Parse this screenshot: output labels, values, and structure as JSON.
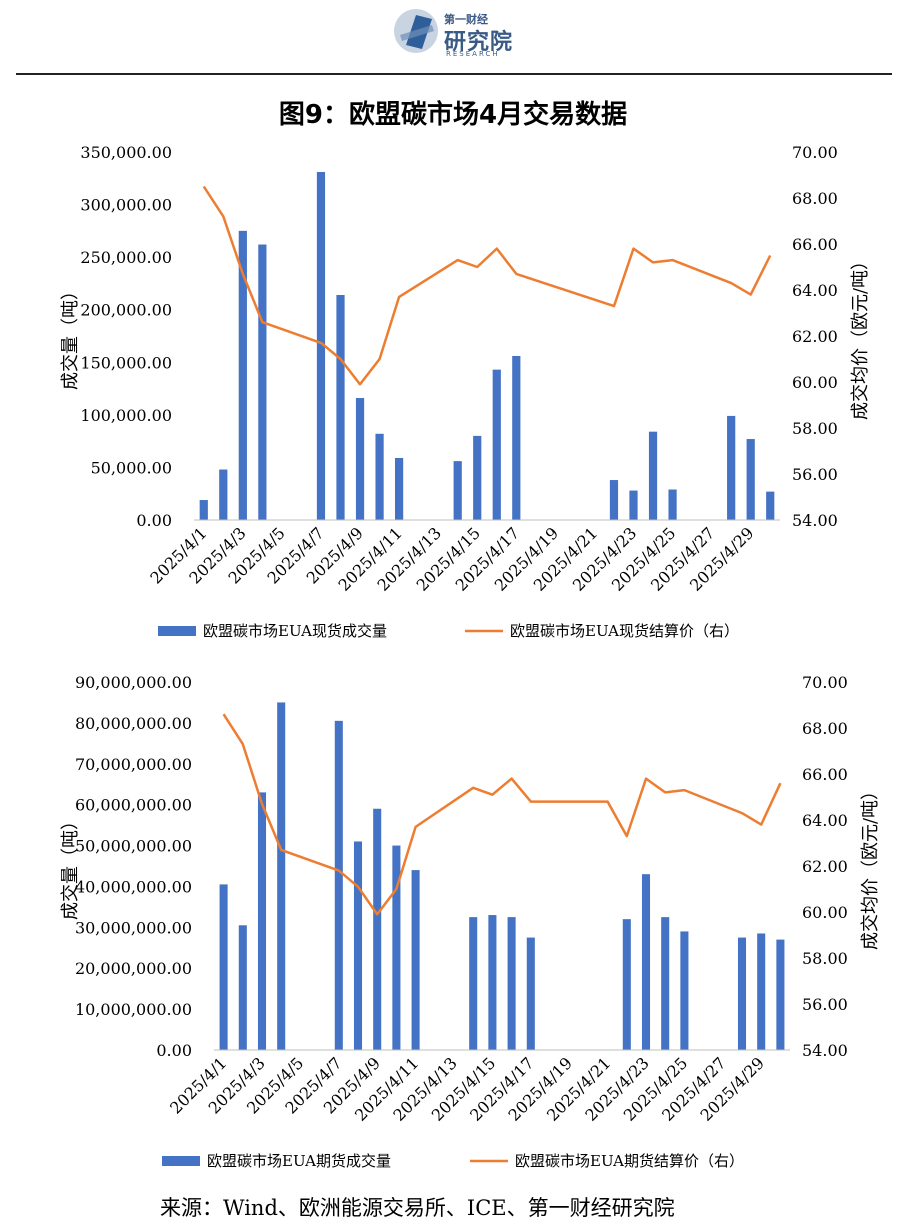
{
  "header": {
    "logo_cn": "第一财经",
    "logo_main": "研究院",
    "logo_en": "RESEARCH"
  },
  "title": "图9：欧盟碳市场4月交易数据",
  "source": "来源：Wind、欧洲能源交易所、ICE、第一财经研究院",
  "colors": {
    "bar": "#4472C4",
    "line": "#ED7D31"
  },
  "chart_data": [
    {
      "type": "bar+line",
      "categories": [
        "2025/4/1",
        "2025/4/2",
        "2025/4/3",
        "2025/4/4",
        "2025/4/5",
        "2025/4/6",
        "2025/4/7",
        "2025/4/8",
        "2025/4/9",
        "2025/4/10",
        "2025/4/11",
        "2025/4/12",
        "2025/4/13",
        "2025/4/14",
        "2025/4/15",
        "2025/4/16",
        "2025/4/17",
        "2025/4/18",
        "2025/4/19",
        "2025/4/20",
        "2025/4/21",
        "2025/4/22",
        "2025/4/23",
        "2025/4/24",
        "2025/4/25",
        "2025/4/26",
        "2025/4/27",
        "2025/4/28",
        "2025/4/29",
        "2025/4/30"
      ],
      "tick_labels": [
        "2025/4/1",
        "2025/4/3",
        "2025/4/5",
        "2025/4/7",
        "2025/4/9",
        "2025/4/11",
        "2025/4/13",
        "2025/4/15",
        "2025/4/17",
        "2025/4/19",
        "2025/4/21",
        "2025/4/23",
        "2025/4/25",
        "2025/4/27",
        "2025/4/29"
      ],
      "ylabel_left": "成交量（吨）",
      "ylabel_right": "成交均价（欧元/吨）",
      "ylim_left": [
        0,
        350000
      ],
      "ylim_right": [
        54,
        70
      ],
      "yticks_left": [
        "0.00",
        "50,000.00",
        "100,000.00",
        "150,000.00",
        "200,000.00",
        "250,000.00",
        "300,000.00",
        "350,000.00"
      ],
      "yticks_right": [
        "54.00",
        "56.00",
        "58.00",
        "60.00",
        "62.00",
        "64.00",
        "66.00",
        "68.00",
        "70.00"
      ],
      "series": [
        {
          "name": "欧盟碳市场EUA现货成交量",
          "type": "bar",
          "axis": "left",
          "values": [
            19000,
            48000,
            275000,
            262000,
            null,
            null,
            331000,
            214000,
            116000,
            82000,
            59000,
            null,
            null,
            56000,
            80000,
            143000,
            156000,
            null,
            null,
            null,
            null,
            38000,
            28000,
            84000,
            29000,
            null,
            null,
            99000,
            77000,
            27000
          ]
        },
        {
          "name": "欧盟碳市场EUA现货结算价（右）",
          "type": "line",
          "axis": "right",
          "values": [
            68.5,
            67.2,
            64.7,
            62.6,
            null,
            null,
            61.7,
            61.0,
            59.9,
            61.0,
            63.7,
            null,
            null,
            65.3,
            65.0,
            65.8,
            64.7,
            null,
            null,
            null,
            null,
            63.3,
            65.8,
            65.2,
            65.3,
            null,
            null,
            64.3,
            63.8,
            65.5
          ]
        }
      ]
    },
    {
      "type": "bar+line",
      "categories": [
        "2025/4/1",
        "2025/4/2",
        "2025/4/3",
        "2025/4/4",
        "2025/4/5",
        "2025/4/6",
        "2025/4/7",
        "2025/4/8",
        "2025/4/9",
        "2025/4/10",
        "2025/4/11",
        "2025/4/12",
        "2025/4/13",
        "2025/4/14",
        "2025/4/15",
        "2025/4/16",
        "2025/4/17",
        "2025/4/18",
        "2025/4/19",
        "2025/4/20",
        "2025/4/21",
        "2025/4/22",
        "2025/4/23",
        "2025/4/24",
        "2025/4/25",
        "2025/4/26",
        "2025/4/27",
        "2025/4/28",
        "2025/4/29",
        "2025/4/30"
      ],
      "tick_labels": [
        "2025/4/1",
        "2025/4/3",
        "2025/4/5",
        "2025/4/7",
        "2025/4/9",
        "2025/4/11",
        "2025/4/13",
        "2025/4/15",
        "2025/4/17",
        "2025/4/19",
        "2025/4/21",
        "2025/4/23",
        "2025/4/25",
        "2025/4/27",
        "2025/4/29"
      ],
      "ylabel_left": "成交量（吨）",
      "ylabel_right": "成交均价（欧元/吨）",
      "ylim_left": [
        0,
        90000000
      ],
      "ylim_right": [
        54,
        70
      ],
      "yticks_left": [
        "0.00",
        "10,000,000.00",
        "20,000,000.00",
        "30,000,000.00",
        "40,000,000.00",
        "50,000,000.00",
        "60,000,000.00",
        "70,000,000.00",
        "80,000,000.00",
        "90,000,000.00"
      ],
      "yticks_right": [
        "54.00",
        "56.00",
        "58.00",
        "60.00",
        "62.00",
        "64.00",
        "66.00",
        "68.00",
        "70.00"
      ],
      "series": [
        {
          "name": "欧盟碳市场EUA期货成交量",
          "type": "bar",
          "axis": "left",
          "values": [
            40500000,
            30500000,
            63000000,
            85000000,
            null,
            null,
            80500000,
            51000000,
            59000000,
            50000000,
            44000000,
            null,
            null,
            32500000,
            33000000,
            32500000,
            27500000,
            null,
            null,
            null,
            null,
            32000000,
            43000000,
            32500000,
            29000000,
            null,
            null,
            27500000,
            28500000,
            27000000
          ]
        },
        {
          "name": "欧盟碳市场EUA期货结算价（右）",
          "type": "line",
          "axis": "right",
          "values": [
            68.6,
            67.3,
            64.7,
            62.7,
            null,
            null,
            61.8,
            61.1,
            59.9,
            61.0,
            63.7,
            null,
            null,
            65.4,
            65.1,
            65.8,
            64.8,
            64.8,
            64.8,
            64.8,
            64.8,
            63.3,
            65.8,
            65.2,
            65.3,
            null,
            null,
            64.3,
            63.8,
            65.6
          ]
        }
      ]
    }
  ]
}
